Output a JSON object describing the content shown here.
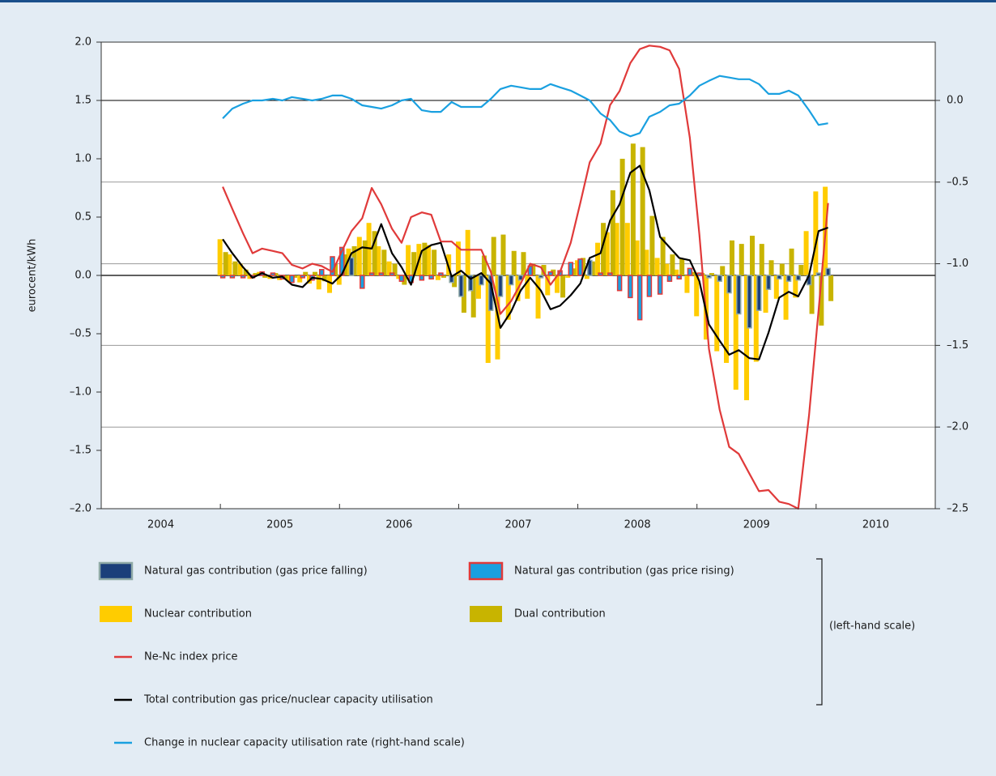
{
  "chart_data": {
    "type": "bar",
    "y_label": "eurocent/kWh",
    "annotation": "(left-hand scale)",
    "xlim": [
      2004,
      2011
    ],
    "xticks": [
      {
        "value": 2004.5,
        "label": "2004"
      },
      {
        "value": 2005.5,
        "label": "2005"
      },
      {
        "value": 2006.5,
        "label": "2006"
      },
      {
        "value": 2007.5,
        "label": "2007"
      },
      {
        "value": 2008.5,
        "label": "2008"
      },
      {
        "value": 2009.5,
        "label": "2009"
      },
      {
        "value": 2010.5,
        "label": "2010"
      }
    ],
    "ylim": [
      -2,
      2
    ],
    "yticks": [
      {
        "value": -2,
        "label": "–2.0"
      },
      {
        "value": -1.5,
        "label": "–1.5"
      },
      {
        "value": -1,
        "label": "–1.0"
      },
      {
        "value": -0.5,
        "label": "–0.5"
      },
      {
        "value": 0,
        "label": "0.0"
      },
      {
        "value": 0.5,
        "label": "0.5"
      },
      {
        "value": 1,
        "label": "1.0"
      },
      {
        "value": 1.5,
        "label": "1.5"
      },
      {
        "value": 2,
        "label": "2.0"
      }
    ],
    "y2lim": [
      -2.5,
      0.357
    ],
    "y2ticks": [
      {
        "value": -2.5,
        "label": "–2.5"
      },
      {
        "value": -2,
        "label": "–2.0"
      },
      {
        "value": -1.5,
        "label": "–1.5"
      },
      {
        "value": -1,
        "label": "–1.0"
      },
      {
        "value": -0.5,
        "label": "–0.5"
      },
      {
        "value": 0,
        "label": "0.0"
      }
    ],
    "grid": "y2",
    "x": [
      2005,
      2005.08,
      2005.17,
      2005.25,
      2005.33,
      2005.42,
      2005.5,
      2005.58,
      2005.67,
      2005.75,
      2005.83,
      2005.92,
      2006,
      2006.08,
      2006.17,
      2006.25,
      2006.33,
      2006.42,
      2006.5,
      2006.58,
      2006.67,
      2006.75,
      2006.83,
      2006.92,
      2007,
      2007.08,
      2007.17,
      2007.25,
      2007.33,
      2007.42,
      2007.5,
      2007.58,
      2007.67,
      2007.75,
      2007.83,
      2007.92,
      2008,
      2008.08,
      2008.17,
      2008.25,
      2008.33,
      2008.42,
      2008.5,
      2008.58,
      2008.67,
      2008.75,
      2008.83,
      2008.92,
      2009,
      2009.08,
      2009.17,
      2009.25,
      2009.33,
      2009.42,
      2009.5,
      2009.58,
      2009.67,
      2009.75,
      2009.83,
      2009.92,
      2010,
      2010.08
    ],
    "series": [
      {
        "name": "Natural gas contribution (gas price falling)",
        "type": "bar",
        "color": "#1b3f7a",
        "border": "#8fa9a6",
        "values": [
          null,
          null,
          null,
          null,
          null,
          null,
          null,
          null,
          null,
          null,
          null,
          null,
          null,
          0.15,
          null,
          null,
          null,
          null,
          null,
          null,
          null,
          null,
          null,
          -0.06,
          -0.18,
          -0.13,
          -0.08,
          -0.3,
          -0.18,
          -0.08,
          -0.04,
          null,
          -0.02,
          null,
          null,
          null,
          null,
          0.13,
          null,
          null,
          null,
          null,
          null,
          null,
          null,
          null,
          null,
          null,
          null,
          -0.02,
          -0.05,
          -0.15,
          -0.33,
          -0.45,
          -0.3,
          -0.12,
          -0.03,
          -0.05,
          -0.04,
          -0.08,
          0.02,
          0.06
        ]
      },
      {
        "name": "Natural gas contribution (gas price rising)",
        "type": "bar",
        "color": "#1aa0e0",
        "border": "#e03a3a",
        "values": [
          -0.02,
          -0.02,
          -0.02,
          -0.02,
          0.03,
          0.02,
          -0.03,
          -0.06,
          -0.02,
          -0.04,
          0.05,
          0.16,
          0.24,
          null,
          -0.11,
          0.02,
          0.02,
          0.02,
          -0.05,
          -0.06,
          -0.04,
          -0.03,
          0.02,
          null,
          null,
          null,
          null,
          null,
          null,
          null,
          null,
          0.08,
          null,
          0.03,
          0.04,
          0.11,
          0.14,
          null,
          0.02,
          0.02,
          -0.13,
          -0.19,
          -0.38,
          -0.18,
          -0.16,
          -0.05,
          -0.03,
          0.06,
          0.02,
          null,
          null,
          null,
          null,
          null,
          null,
          null,
          null,
          null,
          null,
          null,
          null,
          null
        ]
      },
      {
        "name": "Nuclear contribution",
        "type": "bar",
        "color": "#ffcc00",
        "values": [
          0.31,
          0.18,
          0.1,
          -0.03,
          0.03,
          -0.03,
          -0.04,
          -0.05,
          -0.06,
          -0.07,
          -0.12,
          -0.15,
          -0.08,
          0.23,
          0.33,
          0.45,
          0.25,
          0.12,
          -0.03,
          0.26,
          0.27,
          0.26,
          -0.04,
          0.18,
          0.29,
          0.39,
          -0.2,
          -0.75,
          -0.72,
          -0.38,
          -0.22,
          -0.2,
          -0.37,
          -0.17,
          -0.15,
          -0.02,
          0.13,
          -0.03,
          0.28,
          0.37,
          0.45,
          0.45,
          0.3,
          0.22,
          0.15,
          0.1,
          0.05,
          -0.15,
          -0.35,
          -0.55,
          -0.65,
          -0.75,
          -0.98,
          -1.07,
          -0.74,
          -0.32,
          -0.2,
          -0.38,
          -0.19,
          0.38,
          0.72,
          0.76
        ]
      },
      {
        "name": "Dual contribution",
        "type": "bar",
        "color": "#c8b400",
        "values": [
          0.2,
          0.12,
          0.05,
          0.02,
          -0.02,
          0.02,
          -0.03,
          -0.02,
          0.03,
          0.03,
          -0.05,
          0.1,
          0.18,
          0.25,
          0.3,
          0.38,
          0.22,
          0.1,
          -0.08,
          0.2,
          0.28,
          0.22,
          -0.02,
          -0.1,
          -0.32,
          -0.36,
          0.17,
          0.33,
          0.35,
          0.21,
          0.2,
          0.1,
          0.09,
          0.05,
          -0.19,
          0.06,
          0.15,
          0.12,
          0.45,
          0.73,
          1.0,
          1.13,
          1.1,
          0.51,
          0.33,
          0.18,
          0.14,
          0.03,
          0.02,
          0.02,
          0.08,
          0.3,
          0.27,
          0.34,
          0.27,
          0.13,
          0.1,
          0.23,
          0.09,
          -0.33,
          -0.43,
          -0.22
        ]
      },
      {
        "name": "Ne-Nc index price",
        "type": "line",
        "color": "#e03a3a",
        "values": [
          0.76,
          0.57,
          0.36,
          0.19,
          0.23,
          0.21,
          0.19,
          0.09,
          0.06,
          0.1,
          0.08,
          0.03,
          0.21,
          0.38,
          0.49,
          0.75,
          0.61,
          0.4,
          0.28,
          0.5,
          0.54,
          0.52,
          0.29,
          0.29,
          0.22,
          0.22,
          0.22,
          0.03,
          -0.33,
          -0.22,
          -0.07,
          0.1,
          0.07,
          -0.08,
          0.03,
          0.28,
          0.62,
          0.97,
          1.13,
          1.46,
          1.58,
          1.82,
          1.94,
          1.97,
          1.96,
          1.93,
          1.77,
          1.18,
          0.35,
          -0.63,
          -1.15,
          -1.47,
          -1.53,
          -1.7,
          -1.85,
          -1.84,
          -1.94,
          -1.96,
          -2.0,
          -1.2,
          -0.3,
          0.62
        ]
      },
      {
        "name": "Total contribution gas price/nuclear capacity utilisation",
        "type": "line",
        "color": "#000000",
        "values": [
          0.31,
          0.19,
          0.07,
          -0.02,
          0.02,
          -0.02,
          -0.01,
          -0.08,
          -0.1,
          -0.02,
          -0.03,
          -0.07,
          0.01,
          0.19,
          0.24,
          0.23,
          0.44,
          0.19,
          0.07,
          -0.08,
          0.21,
          0.26,
          0.28,
          -0.01,
          0.04,
          -0.03,
          0.02,
          -0.07,
          -0.45,
          -0.31,
          -0.13,
          -0.02,
          -0.13,
          -0.29,
          -0.26,
          -0.17,
          -0.07,
          0.15,
          0.19,
          0.47,
          0.61,
          0.88,
          0.94,
          0.73,
          0.33,
          0.24,
          0.15,
          0.13,
          -0.05,
          -0.42,
          -0.56,
          -0.68,
          -0.64,
          -0.71,
          -0.72,
          -0.49,
          -0.19,
          -0.14,
          -0.18,
          0.0,
          0.38,
          0.41
        ]
      },
      {
        "name": "Change in nuclear capacity utilisation rate (right-hand scale)",
        "type": "line",
        "axis": "y2",
        "color": "#1aa0e0",
        "values": [
          -0.11,
          -0.05,
          -0.02,
          0.0,
          0.0,
          0.01,
          0.0,
          0.02,
          0.01,
          0.0,
          0.01,
          0.03,
          0.03,
          0.01,
          -0.03,
          -0.04,
          -0.05,
          -0.03,
          0.0,
          0.01,
          -0.06,
          -0.07,
          -0.07,
          -0.01,
          -0.04,
          -0.04,
          -0.04,
          0.01,
          0.07,
          0.09,
          0.08,
          0.07,
          0.07,
          0.1,
          0.08,
          0.06,
          0.03,
          0.0,
          -0.08,
          -0.12,
          -0.19,
          -0.22,
          -0.2,
          -0.1,
          -0.07,
          -0.03,
          -0.02,
          0.03,
          0.09,
          0.12,
          0.15,
          0.14,
          0.13,
          0.13,
          0.1,
          0.04,
          0.04,
          0.06,
          0.03,
          -0.06,
          -0.15,
          -0.14
        ]
      }
    ]
  }
}
